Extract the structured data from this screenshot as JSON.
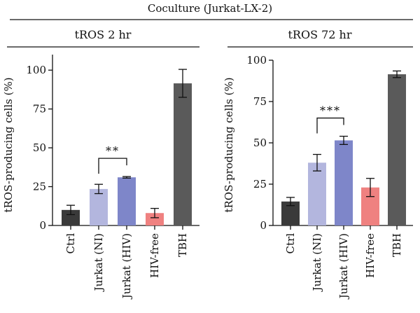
{
  "title": "Coculture (Jurkat-LX-2)",
  "chart_data": [
    {
      "type": "bar",
      "title": "tROS 2 hr",
      "ylabel": "tROS-producing cells (%)",
      "ylim": [
        0,
        110
      ],
      "yticks": [
        0,
        25,
        50,
        75,
        100
      ],
      "categories": [
        "Ctrl",
        "Jurkat (NI)",
        "Jurkat (HIV)",
        "HIV-free",
        "TBH"
      ],
      "values": [
        10,
        23.5,
        31,
        8,
        91.5
      ],
      "errors": [
        3,
        3,
        0.5,
        3,
        9
      ],
      "colors": [
        "#3a3a3a",
        "#b3b6de",
        "#7e86c9",
        "#ef8180",
        "#5a5a5a"
      ],
      "significance": [
        {
          "from": 1,
          "to": 2,
          "label": "**"
        }
      ]
    },
    {
      "type": "bar",
      "title": "tROS 72 hr",
      "ylabel": "tROS-producing cells (%)",
      "ylim": [
        0,
        100
      ],
      "yticks": [
        0,
        25,
        50,
        75,
        100
      ],
      "categories": [
        "Ctrl",
        "Jurkat (NI)",
        "Jurkat (HIV)",
        "HIV-free",
        "TBH"
      ],
      "values": [
        14.5,
        38,
        51.5,
        23,
        91.5
      ],
      "errors": [
        2.5,
        5,
        2.5,
        5.5,
        2
      ],
      "colors": [
        "#3a3a3a",
        "#b3b6de",
        "#7e86c9",
        "#ef8180",
        "#5a5a5a"
      ],
      "significance": [
        {
          "from": 1,
          "to": 2,
          "label": "***"
        }
      ]
    }
  ]
}
